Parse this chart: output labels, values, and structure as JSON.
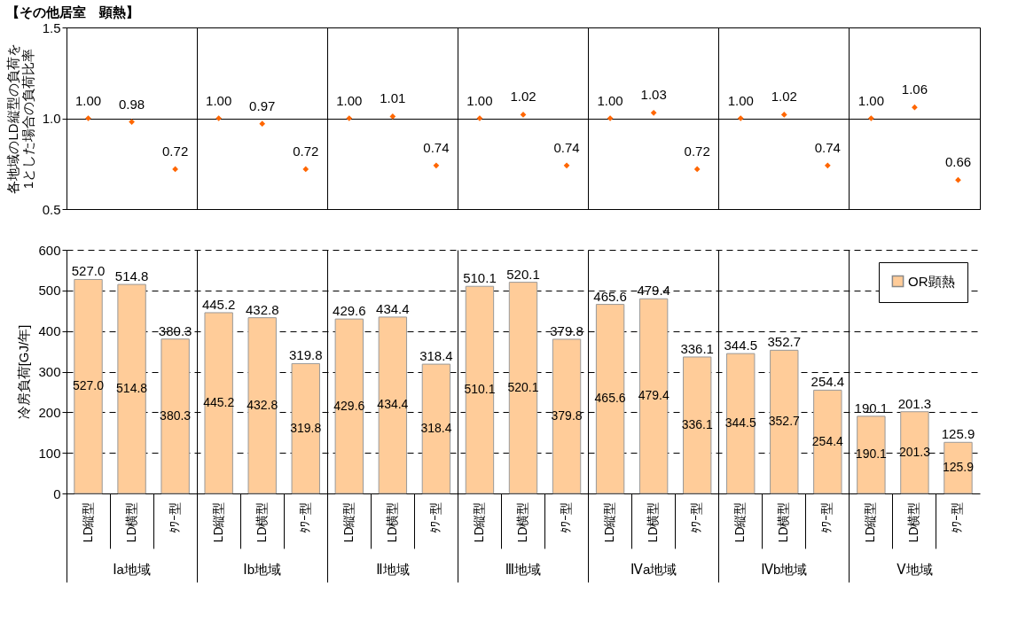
{
  "chart_data": [
    {
      "type": "scatter",
      "title": "【その他居室　顕熱】",
      "ylabel": "各地域のLD縦型の負荷を\n1とした場合の負荷比率",
      "categories": [
        null,
        null,
        null,
        null,
        null,
        null,
        null,
        null,
        null,
        null,
        null,
        null,
        null,
        null,
        null,
        null,
        null,
        null,
        null,
        null,
        null
      ],
      "series": [
        {
          "color": "#ff6600",
          "values": [
            1.0,
            0.98,
            0.72,
            1.0,
            0.97,
            0.72,
            1.0,
            1.01,
            0.74,
            1.0,
            1.02,
            0.74,
            1.0,
            1.03,
            0.72,
            1.0,
            1.02,
            0.74,
            1.0,
            1.06,
            0.66
          ],
          "value_labels": [
            "1.00",
            "0.98",
            "0.72",
            "1.00",
            "0.97",
            "0.72",
            "1.00",
            "1.01",
            "0.74",
            "1.00",
            "1.02",
            "0.74",
            "1.00",
            "1.03",
            "0.72",
            "1.00",
            "1.02",
            "0.74",
            "1.00",
            "1.06",
            "0.66"
          ]
        }
      ],
      "marker": "diamond",
      "ylim": [
        0.5,
        1.5
      ],
      "yticks": [
        {
          "value": 0.5,
          "label": "0.5"
        },
        {
          "value": 1,
          "label": "1.0"
        },
        {
          "value": 1.5,
          "label": "1.5"
        }
      ],
      "grid": true,
      "tick_labels": "y"
    },
    {
      "type": "bar",
      "ylabel": "冷房負荷[GJ/年]",
      "categories": [
        "LD縦型",
        "LD横型",
        "ﾀﾜｰ型",
        "LD縦型",
        "LD横型",
        "ﾀﾜｰ型",
        "LD縦型",
        "LD横型",
        "ﾀﾜｰ型",
        "LD縦型",
        "LD横型",
        "ﾀﾜｰ型",
        "LD縦型",
        "LD横型",
        "ﾀﾜｰ型",
        "LD縦型",
        "LD横型",
        "ﾀﾜｰ型",
        "LD縦型",
        "LD横型",
        "ﾀﾜｰ型"
      ],
      "series": [
        {
          "name": "OR顕熱",
          "color": "#ffcc99",
          "values": [
            527.0,
            514.8,
            380.3,
            445.2,
            432.8,
            319.8,
            429.6,
            434.4,
            318.4,
            510.1,
            520.1,
            379.8,
            465.6,
            479.4,
            336.1,
            344.5,
            352.7,
            254.4,
            190.1,
            201.3,
            125.9
          ],
          "value_labels": [
            "527.0",
            "514.8",
            "380.3",
            "445.2",
            "432.8",
            "319.8",
            "429.6",
            "434.4",
            "318.4",
            "510.1",
            "520.1",
            "379.8",
            "465.6",
            "479.4",
            "336.1",
            "344.5",
            "352.7",
            "254.4",
            "190.1",
            "201.3",
            "125.9"
          ]
        }
      ],
      "ylim": [
        0,
        600
      ],
      "yticks": [
        0,
        100,
        200,
        300,
        400,
        500,
        600
      ],
      "grid": true,
      "legend": "top right",
      "annotations": [
        "Ⅰa地域",
        "Ⅰb地域",
        "Ⅱ地域",
        "Ⅲ地域",
        "Ⅳa地域",
        "Ⅳb地域",
        "Ⅴ地域"
      ]
    }
  ]
}
